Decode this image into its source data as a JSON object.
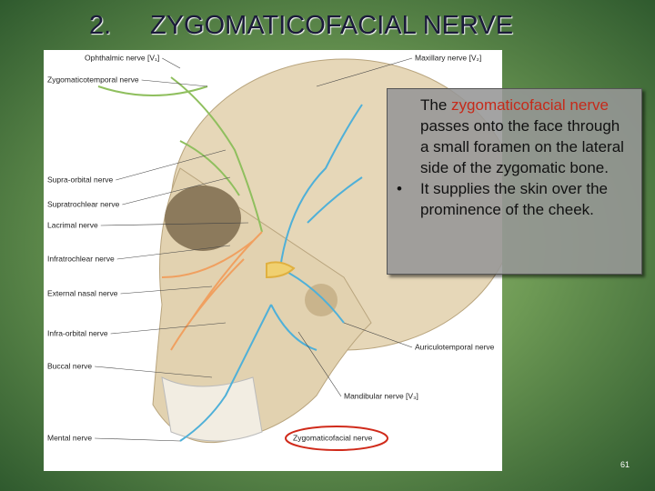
{
  "title": {
    "number": "2.",
    "text": "ZYGOMATICOFACIAL NERVE"
  },
  "figure": {
    "left_labels": [
      "Ophthalmic nerve [V₁]",
      "Zygomaticotemporal nerve",
      "Supra-orbital nerve",
      "Supratrochlear nerve",
      "Lacrimal nerve",
      "Infratrochlear nerve",
      "External nasal nerve",
      "Infra-orbital nerve",
      "Buccal nerve",
      "Mental nerve"
    ],
    "right_labels": [
      "Maxillary nerve [V₂]",
      "Auriculotemporal nerve",
      "Mandibular nerve [V₃]",
      "Zygomaticofacial nerve"
    ]
  },
  "textbox": {
    "paragraph": {
      "before": "The ",
      "highlight": "zygomaticofacial nerve",
      "after": " passes onto the face through a small foramen on the lateral side of the zygomatic bone."
    },
    "bullet": "It supplies the skin over the prominence of the cheek."
  },
  "page_number": "61"
}
